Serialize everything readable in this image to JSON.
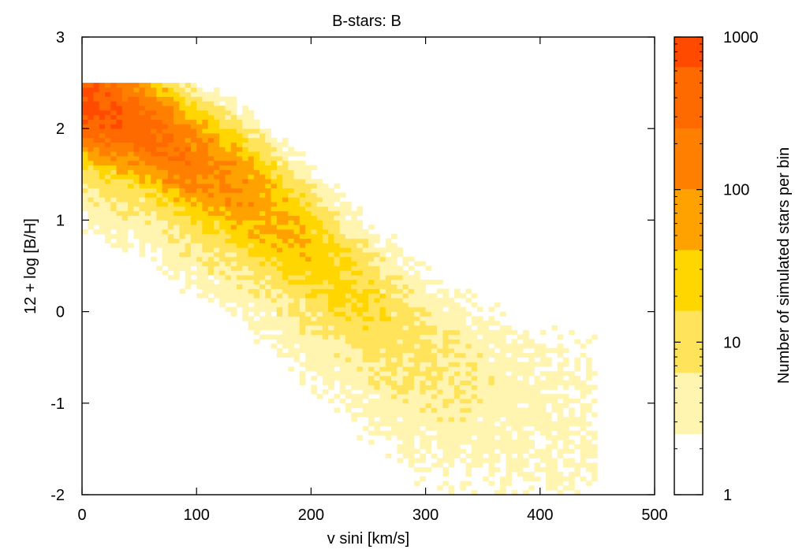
{
  "chart_data": {
    "type": "heatmap",
    "title": "B-stars: B",
    "xlabel": "v sini [km/s]",
    "ylabel": "12 + log [B/H]",
    "xlim": [
      0,
      500
    ],
    "ylim": [
      -2,
      3
    ],
    "x_ticks": [
      0,
      100,
      200,
      300,
      400,
      500
    ],
    "x_tick_labels": [
      "0",
      "100",
      "200",
      "300",
      "400",
      "500"
    ],
    "y_ticks": [
      -2,
      -1,
      0,
      1,
      2,
      3
    ],
    "y_tick_labels": [
      "-2",
      "-1",
      "0",
      "1",
      "2",
      "3"
    ],
    "grid": false,
    "bin_width": 5,
    "bin_height": 0.05,
    "ridge": {
      "description_points_vsini": [
        0,
        50,
        100,
        150,
        200,
        250,
        300,
        350,
        400
      ],
      "log_abundance": [
        2.3,
        2.05,
        1.65,
        1.25,
        0.7,
        0.1,
        -0.4,
        -0.7,
        -0.9
      ]
    },
    "peak_counts_per_bin": 1000,
    "colorbar": {
      "label": "Number of simulated stars per bin",
      "scale": "log",
      "range": [
        1,
        1000
      ],
      "ticks": [
        1,
        10,
        100,
        1000
      ],
      "tick_labels": [
        "1",
        "10",
        "100",
        "1000"
      ],
      "levels": [
        {
          "from": 1.0,
          "to": 2.5,
          "color": "#ffffff"
        },
        {
          "from": 2.5,
          "to": 6.3,
          "color": "#fff4b0"
        },
        {
          "from": 6.3,
          "to": 16,
          "color": "#ffe35a"
        },
        {
          "from": 16,
          "to": 40,
          "color": "#ffd600"
        },
        {
          "from": 40,
          "to": 100,
          "color": "#ffa200"
        },
        {
          "from": 100,
          "to": 250,
          "color": "#ff8000"
        },
        {
          "from": 250,
          "to": 630,
          "color": "#ff6a00"
        },
        {
          "from": 630,
          "to": 1000,
          "color": "#ff4a00"
        }
      ]
    }
  }
}
